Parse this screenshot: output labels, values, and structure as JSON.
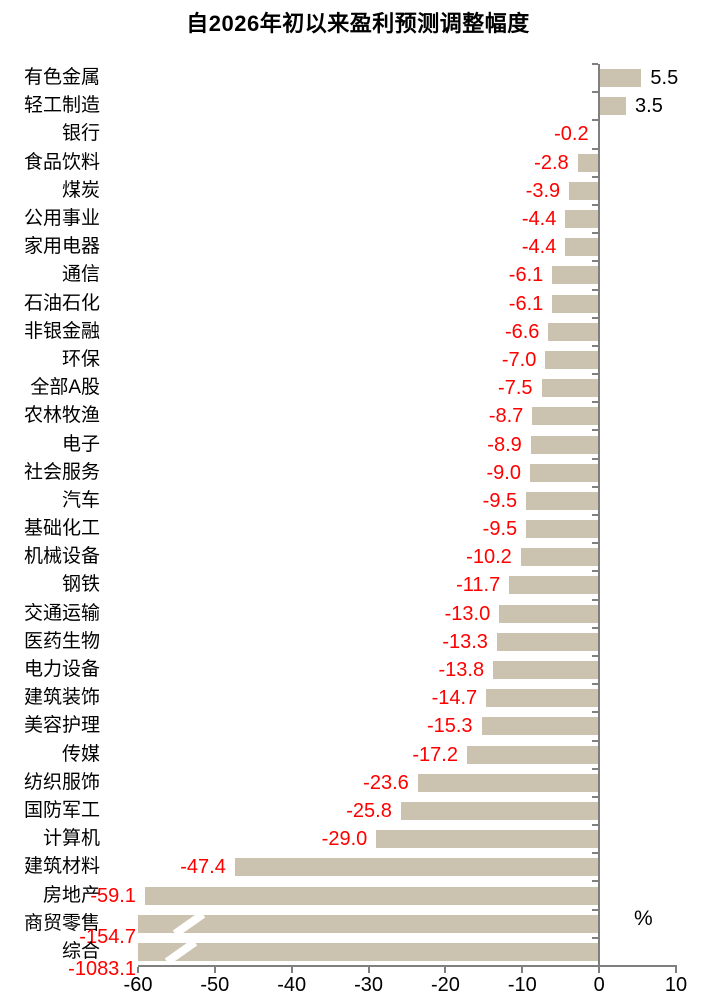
{
  "chart_data": {
    "type": "bar",
    "orientation": "horizontal",
    "title": "自2026年初以来盈利预测调整幅度",
    "unit_label": "%",
    "xlabel": "",
    "ylabel": "",
    "xlim": [
      -60,
      10
    ],
    "x_ticks": [
      -60,
      -50,
      -40,
      -30,
      -20,
      -10,
      0,
      10
    ],
    "grid": false,
    "legend": false,
    "bars_truncated_at_axis_min": [
      "商贸零售",
      "综合"
    ],
    "categories": [
      "有色金属",
      "轻工制造",
      "银行",
      "食品饮料",
      "煤炭",
      "公用事业",
      "家用电器",
      "通信",
      "石油石化",
      "非银金融",
      "环保",
      "全部A股",
      "农林牧渔",
      "电子",
      "社会服务",
      "汽车",
      "基础化工",
      "机械设备",
      "钢铁",
      "交通运输",
      "医药生物",
      "电力设备",
      "建筑装饰",
      "美容护理",
      "传媒",
      "纺织服饰",
      "国防军工",
      "计算机",
      "建筑材料",
      "房地产",
      "商贸零售",
      "综合"
    ],
    "values": [
      5.5,
      3.5,
      -0.2,
      -2.8,
      -3.9,
      -4.4,
      -4.4,
      -6.1,
      -6.1,
      -6.6,
      -7.0,
      -7.5,
      -8.7,
      -8.9,
      -9.0,
      -9.5,
      -9.5,
      -10.2,
      -11.7,
      -13.0,
      -13.3,
      -13.8,
      -14.7,
      -15.3,
      -17.2,
      -23.6,
      -25.8,
      -29.0,
      -47.4,
      -59.1,
      -154.7,
      -1083.1
    ],
    "colors": {
      "bar": "#CBC2B0",
      "negative_value_label": "#FF0000",
      "positive_value_label": "#000000",
      "axis": "#7F7F7F",
      "text": "#000000"
    }
  }
}
